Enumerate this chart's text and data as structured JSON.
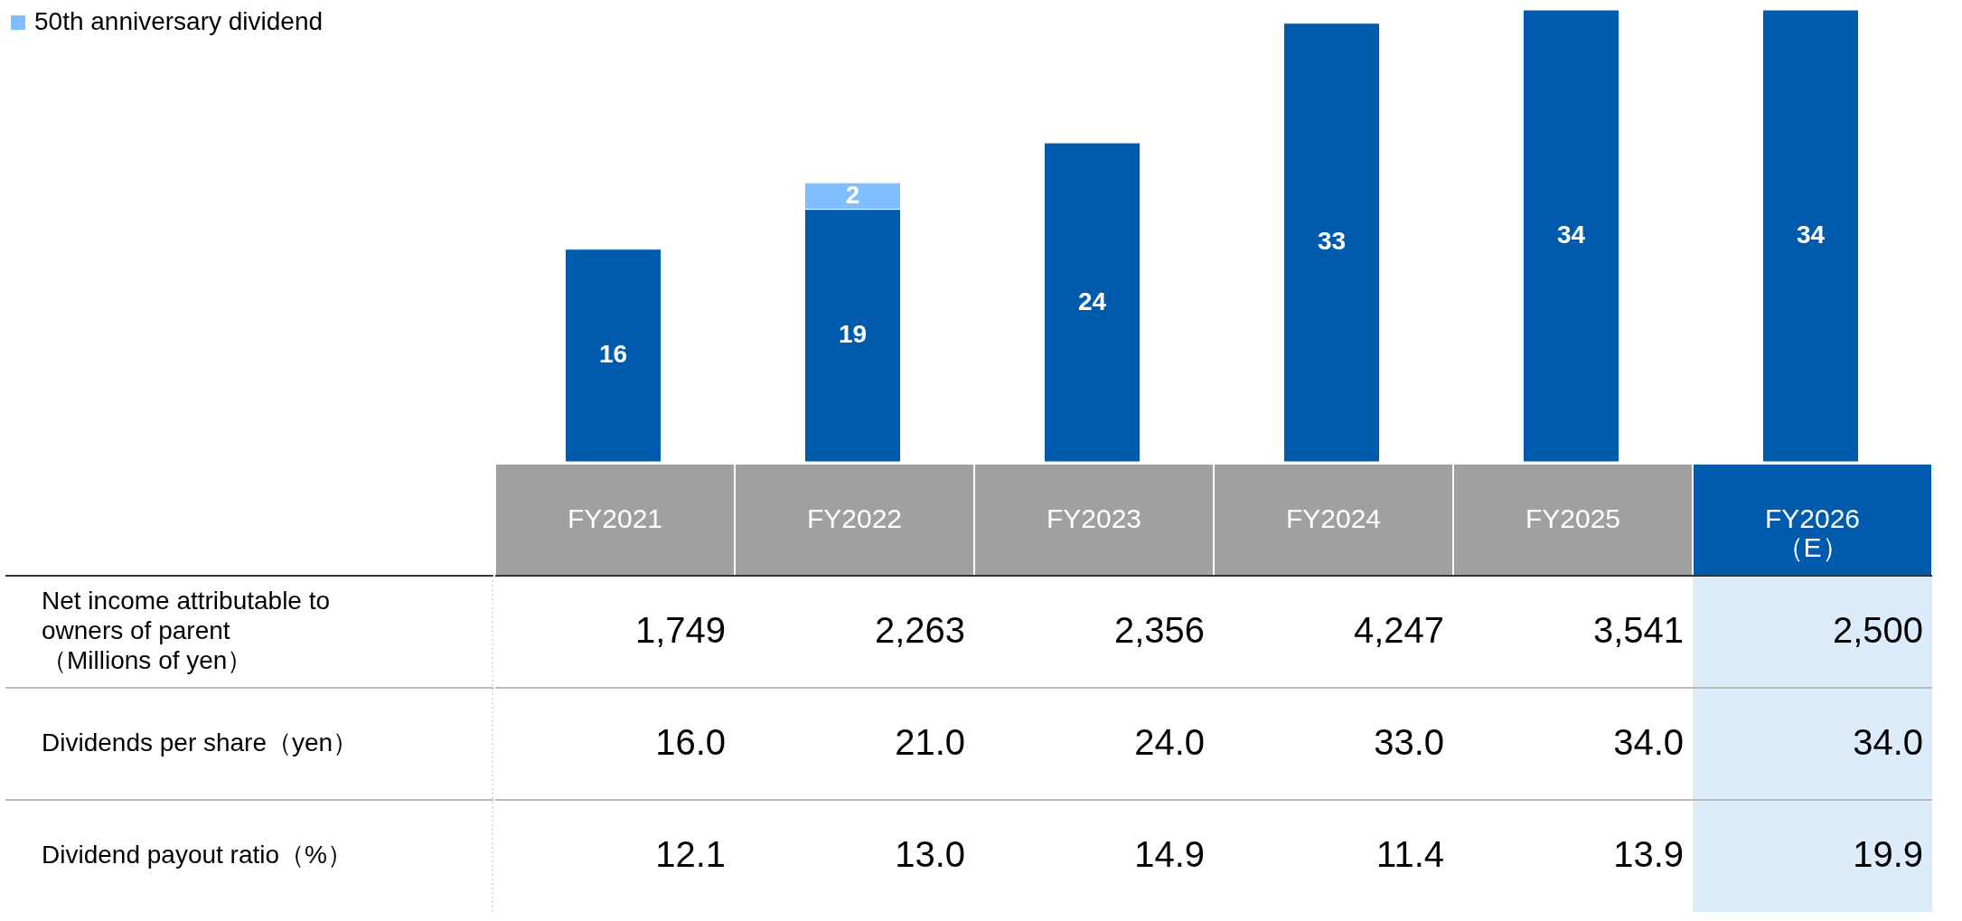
{
  "chart_data": {
    "type": "bar",
    "stacked": true,
    "data_labels": true,
    "legend": "top left",
    "categories": [
      "FY2021",
      "FY2022",
      "FY2023",
      "FY2024",
      "FY2025",
      "FY2026\n（E）"
    ],
    "series": [
      {
        "color": "#005bac",
        "values": [
          16,
          19,
          24,
          33,
          34,
          34
        ]
      },
      {
        "name": "50th anniversary dividend",
        "color": "#7fbfff",
        "values": [
          null,
          2,
          null,
          null,
          null,
          null
        ]
      }
    ],
    "annotations": [
      "Net income attributable to\nowners of parent\n（Millions of yen）",
      "1,749",
      "2,263",
      "2,356",
      "4,247",
      "3,541",
      "2,500",
      "Dividends per share（yen）",
      "16.0",
      "21.0",
      "24.0",
      "33.0",
      "34.0",
      "34.0",
      "Dividend payout ratio（%）",
      "12.1",
      "13.0",
      "14.9",
      "11.4",
      "13.9",
      "19.9"
    ]
  }
}
